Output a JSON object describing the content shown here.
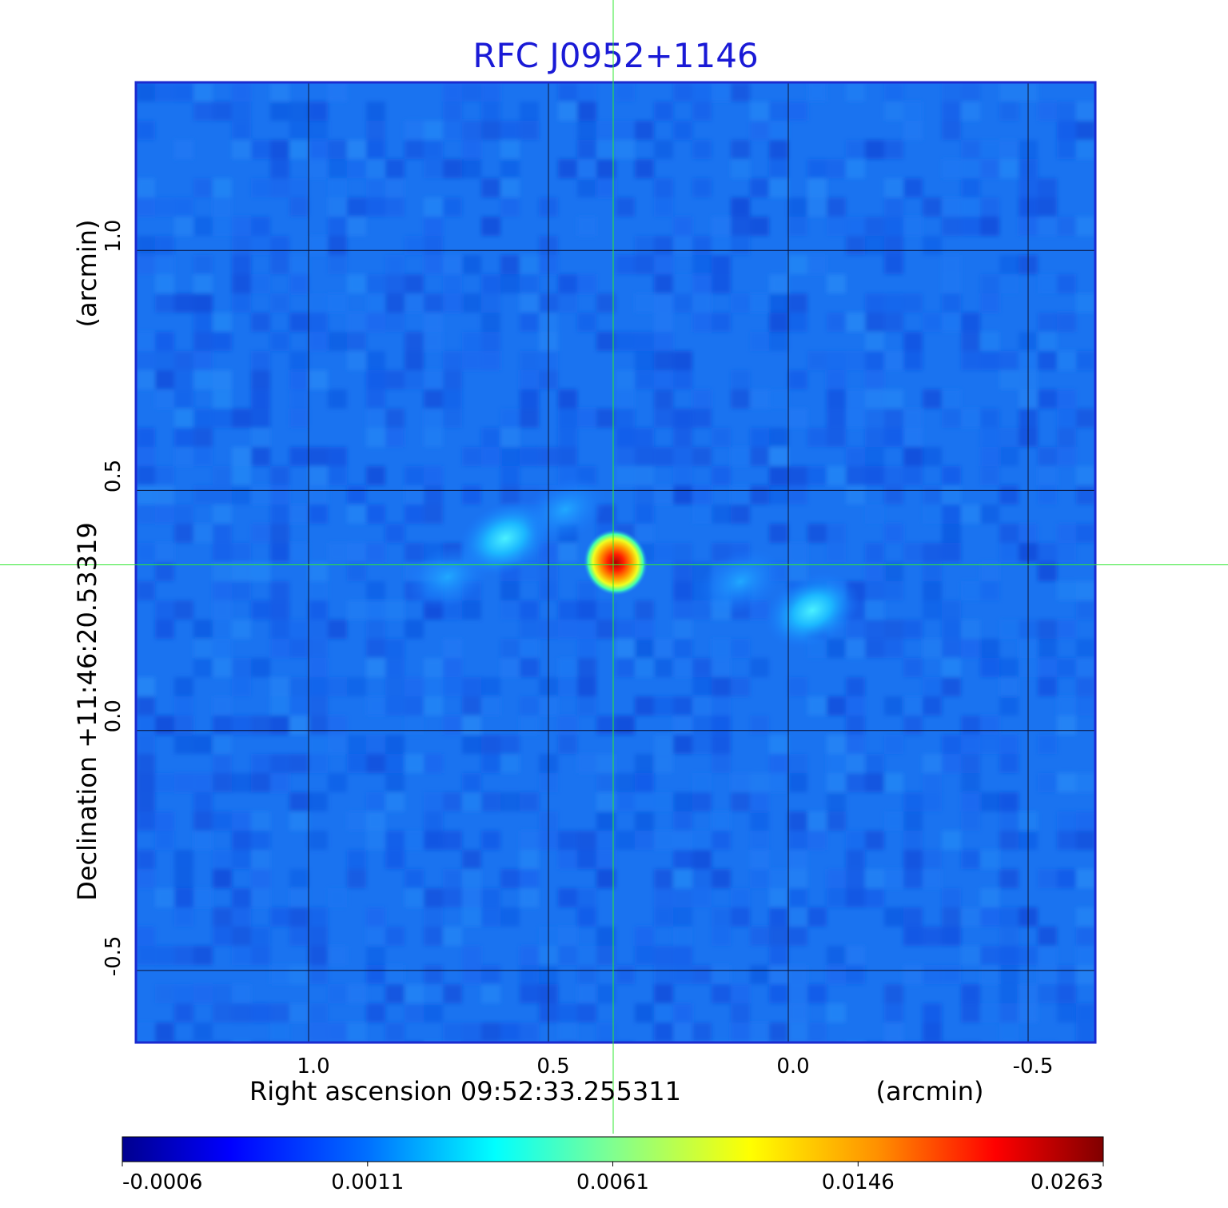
{
  "chart_data": {
    "type": "heatmap",
    "title": "RFC J0952+1146",
    "xlabel": "Right ascension  09:52:33.255311",
    "xunit": "(arcmin)",
    "ylabel": "Declination  +11:46:20.53319",
    "yunit": "(arcmin)",
    "x_ticks": [
      "1.0",
      "0.5",
      "0.0",
      "-0.5"
    ],
    "x_tick_values": [
      1.0,
      0.5,
      0.0,
      -0.5
    ],
    "y_ticks": [
      "1.0",
      "0.5",
      "0.0",
      "-0.5"
    ],
    "y_tick_values": [
      1.0,
      0.5,
      0.0,
      -0.5
    ],
    "xlim": [
      1.36,
      -0.64
    ],
    "ylim": [
      -0.65,
      1.35
    ],
    "grid": true,
    "crosshair": {
      "x": 0.365,
      "y": 0.345
    },
    "colormap": "jet",
    "colorbar_labels": [
      "-0.0006",
      "0.0011",
      "0.0061",
      "0.0146",
      "0.0263"
    ],
    "colorbar_range": [
      -0.0006,
      0.0263
    ],
    "features": [
      {
        "x": 0.36,
        "y": 0.35,
        "peak": 0.0263
      },
      {
        "x": 0.59,
        "y": 0.4,
        "peak": 0.0042
      },
      {
        "x": 0.71,
        "y": 0.32,
        "peak": 0.0026
      },
      {
        "x": 0.465,
        "y": 0.46,
        "peak": 0.0022
      },
      {
        "x": -0.05,
        "y": 0.25,
        "peak": 0.0034
      },
      {
        "x": 0.1,
        "y": 0.31,
        "peak": 0.0018
      }
    ]
  }
}
